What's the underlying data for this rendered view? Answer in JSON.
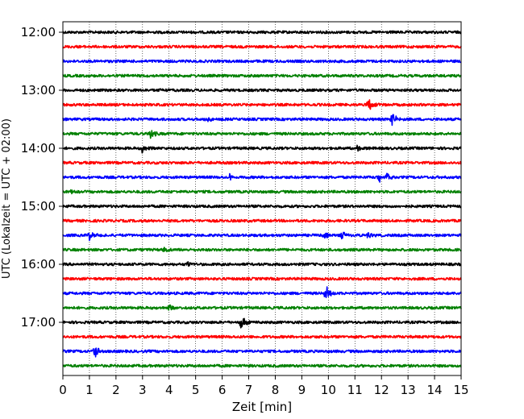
{
  "chart_data": {
    "type": "line",
    "title": "",
    "xlabel": "Zeit  [min]",
    "ylabel": "UTC (Lokalzeit = UTC + 02:00)",
    "xlim": [
      0,
      15
    ],
    "x_ticks": [
      "0",
      "1",
      "2",
      "3",
      "4",
      "5",
      "6",
      "7",
      "8",
      "9",
      "10",
      "11",
      "12",
      "13",
      "14",
      "15"
    ],
    "y_ticks": [
      "12:00",
      "13:00",
      "14:00",
      "15:00",
      "16:00",
      "17:00"
    ],
    "grid": "vertical dotted",
    "row_interval_min": 15,
    "color_cycle": [
      "#000000",
      "#ff0000",
      "#0000ff",
      "#008000"
    ],
    "traces": [
      {
        "start": "12:00",
        "events": []
      },
      {
        "start": "12:15",
        "events": []
      },
      {
        "start": "12:30",
        "events": []
      },
      {
        "start": "12:45",
        "events": []
      },
      {
        "start": "13:00",
        "events": [
          {
            "t": 3.7,
            "amp": 0.25
          }
        ]
      },
      {
        "start": "13:15",
        "events": [
          {
            "t": 11.5,
            "amp": 0.9
          }
        ]
      },
      {
        "start": "13:30",
        "events": [
          {
            "t": 5.4,
            "amp": 0.3
          },
          {
            "t": 12.4,
            "amp": 0.8
          }
        ]
      },
      {
        "start": "13:45",
        "events": [
          {
            "t": 3.3,
            "amp": 0.6
          }
        ]
      },
      {
        "start": "14:00",
        "events": [
          {
            "t": 3.0,
            "amp": 0.6
          },
          {
            "t": 11.1,
            "amp": 0.4
          }
        ]
      },
      {
        "start": "14:15",
        "events": []
      },
      {
        "start": "14:30",
        "events": [
          {
            "t": 6.3,
            "amp": 0.45
          },
          {
            "t": 11.9,
            "amp": 0.7
          },
          {
            "t": 12.2,
            "amp": 0.6
          }
        ]
      },
      {
        "start": "14:45",
        "events": [
          {
            "t": 0.3,
            "amp": 0.3
          }
        ]
      },
      {
        "start": "15:00",
        "events": []
      },
      {
        "start": "15:15",
        "events": []
      },
      {
        "start": "15:30",
        "events": [
          {
            "t": 1.0,
            "amp": 0.55
          },
          {
            "t": 9.8,
            "amp": 0.5
          },
          {
            "t": 10.5,
            "amp": 0.5
          },
          {
            "t": 11.5,
            "amp": 0.4
          }
        ]
      },
      {
        "start": "15:45",
        "events": [
          {
            "t": 3.8,
            "amp": 0.4
          }
        ]
      },
      {
        "start": "16:00",
        "events": [
          {
            "t": 4.7,
            "amp": 0.3
          }
        ]
      },
      {
        "start": "16:15",
        "events": []
      },
      {
        "start": "16:30",
        "events": [
          {
            "t": 9.9,
            "amp": 1.0
          }
        ]
      },
      {
        "start": "16:45",
        "events": [
          {
            "t": 4.0,
            "amp": 0.3
          }
        ]
      },
      {
        "start": "17:00",
        "events": [
          {
            "t": 6.7,
            "amp": 1.0
          }
        ]
      },
      {
        "start": "17:15",
        "events": []
      },
      {
        "start": "17:30",
        "events": [
          {
            "t": 1.2,
            "amp": 0.9
          }
        ]
      },
      {
        "start": "17:45",
        "events": []
      }
    ]
  }
}
